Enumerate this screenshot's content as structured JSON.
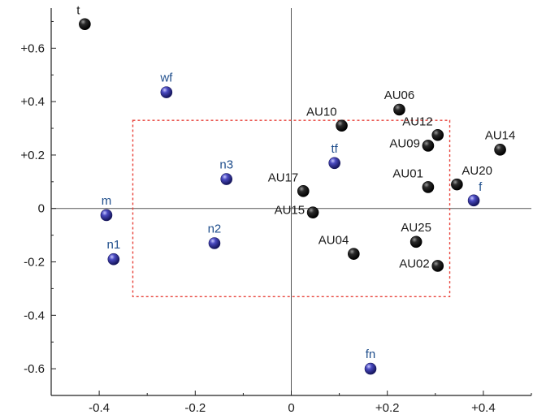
{
  "chart_data": {
    "type": "scatter",
    "title": "",
    "xlabel": "",
    "ylabel": "",
    "xlim": [
      -0.5,
      0.5
    ],
    "ylim": [
      -0.7,
      0.75
    ],
    "xticks": [
      -0.4,
      -0.2,
      0,
      0.2,
      0.4
    ],
    "xtick_labels": [
      "-0.4",
      "-0.2",
      "0",
      "+0.2",
      "+0.4"
    ],
    "yticks": [
      0.6,
      0.4,
      0.2,
      0,
      -0.2,
      -0.4,
      -0.6
    ],
    "ytick_labels": [
      "+0.6",
      "+0.4",
      "+0.2",
      "0",
      "-0.2",
      "-0.4",
      "-0.6"
    ],
    "grid": false,
    "zero_lines": true,
    "highlight_box": {
      "x0": -0.33,
      "x1": 0.33,
      "y0": -0.33,
      "y1": 0.33,
      "color": "#e8423a",
      "style": "dotted"
    },
    "colors": {
      "black_points": "#111111",
      "blue_points": "#3a3aa8",
      "blue_labels": "#1f4e8c",
      "black_labels": "#1a1a1a"
    },
    "series": [
      {
        "name": "",
        "color": "black",
        "points": [
          {
            "label": "t",
            "x": -0.43,
            "y": 0.69,
            "label_pos": "above-left"
          },
          {
            "label": "AU06",
            "x": 0.225,
            "y": 0.37,
            "label_pos": "above"
          },
          {
            "label": "AU10",
            "x": 0.105,
            "y": 0.31,
            "label_pos": "above-left"
          },
          {
            "label": "AU12",
            "x": 0.305,
            "y": 0.275,
            "label_pos": "above-left"
          },
          {
            "label": "AU09",
            "x": 0.285,
            "y": 0.235,
            "label_pos": "left"
          },
          {
            "label": "AU14",
            "x": 0.435,
            "y": 0.22,
            "label_pos": "above"
          },
          {
            "label": "AU17",
            "x": 0.025,
            "y": 0.065,
            "label_pos": "above-left"
          },
          {
            "label": "AU01",
            "x": 0.285,
            "y": 0.08,
            "label_pos": "above-left"
          },
          {
            "label": "AU20",
            "x": 0.345,
            "y": 0.09,
            "label_pos": "above-right"
          },
          {
            "label": "AU15",
            "x": 0.045,
            "y": -0.015,
            "label_pos": "left"
          },
          {
            "label": "AU25",
            "x": 0.26,
            "y": -0.125,
            "label_pos": "above"
          },
          {
            "label": "AU04",
            "x": 0.13,
            "y": -0.17,
            "label_pos": "above-left"
          },
          {
            "label": "AU02",
            "x": 0.305,
            "y": -0.215,
            "label_pos": "left"
          }
        ]
      },
      {
        "name": "",
        "color": "blue",
        "points": [
          {
            "label": "wf",
            "x": -0.26,
            "y": 0.435,
            "label_pos": "above"
          },
          {
            "label": "n3",
            "x": -0.135,
            "y": 0.11,
            "label_pos": "above"
          },
          {
            "label": "tf",
            "x": 0.09,
            "y": 0.17,
            "label_pos": "above"
          },
          {
            "label": "m",
            "x": -0.385,
            "y": -0.025,
            "label_pos": "above"
          },
          {
            "label": "n2",
            "x": -0.16,
            "y": -0.13,
            "label_pos": "above"
          },
          {
            "label": "n1",
            "x": -0.37,
            "y": -0.19,
            "label_pos": "above"
          },
          {
            "label": "f",
            "x": 0.38,
            "y": 0.03,
            "label_pos": "above-right"
          },
          {
            "label": "fn",
            "x": 0.165,
            "y": -0.6,
            "label_pos": "above"
          }
        ]
      }
    ]
  }
}
